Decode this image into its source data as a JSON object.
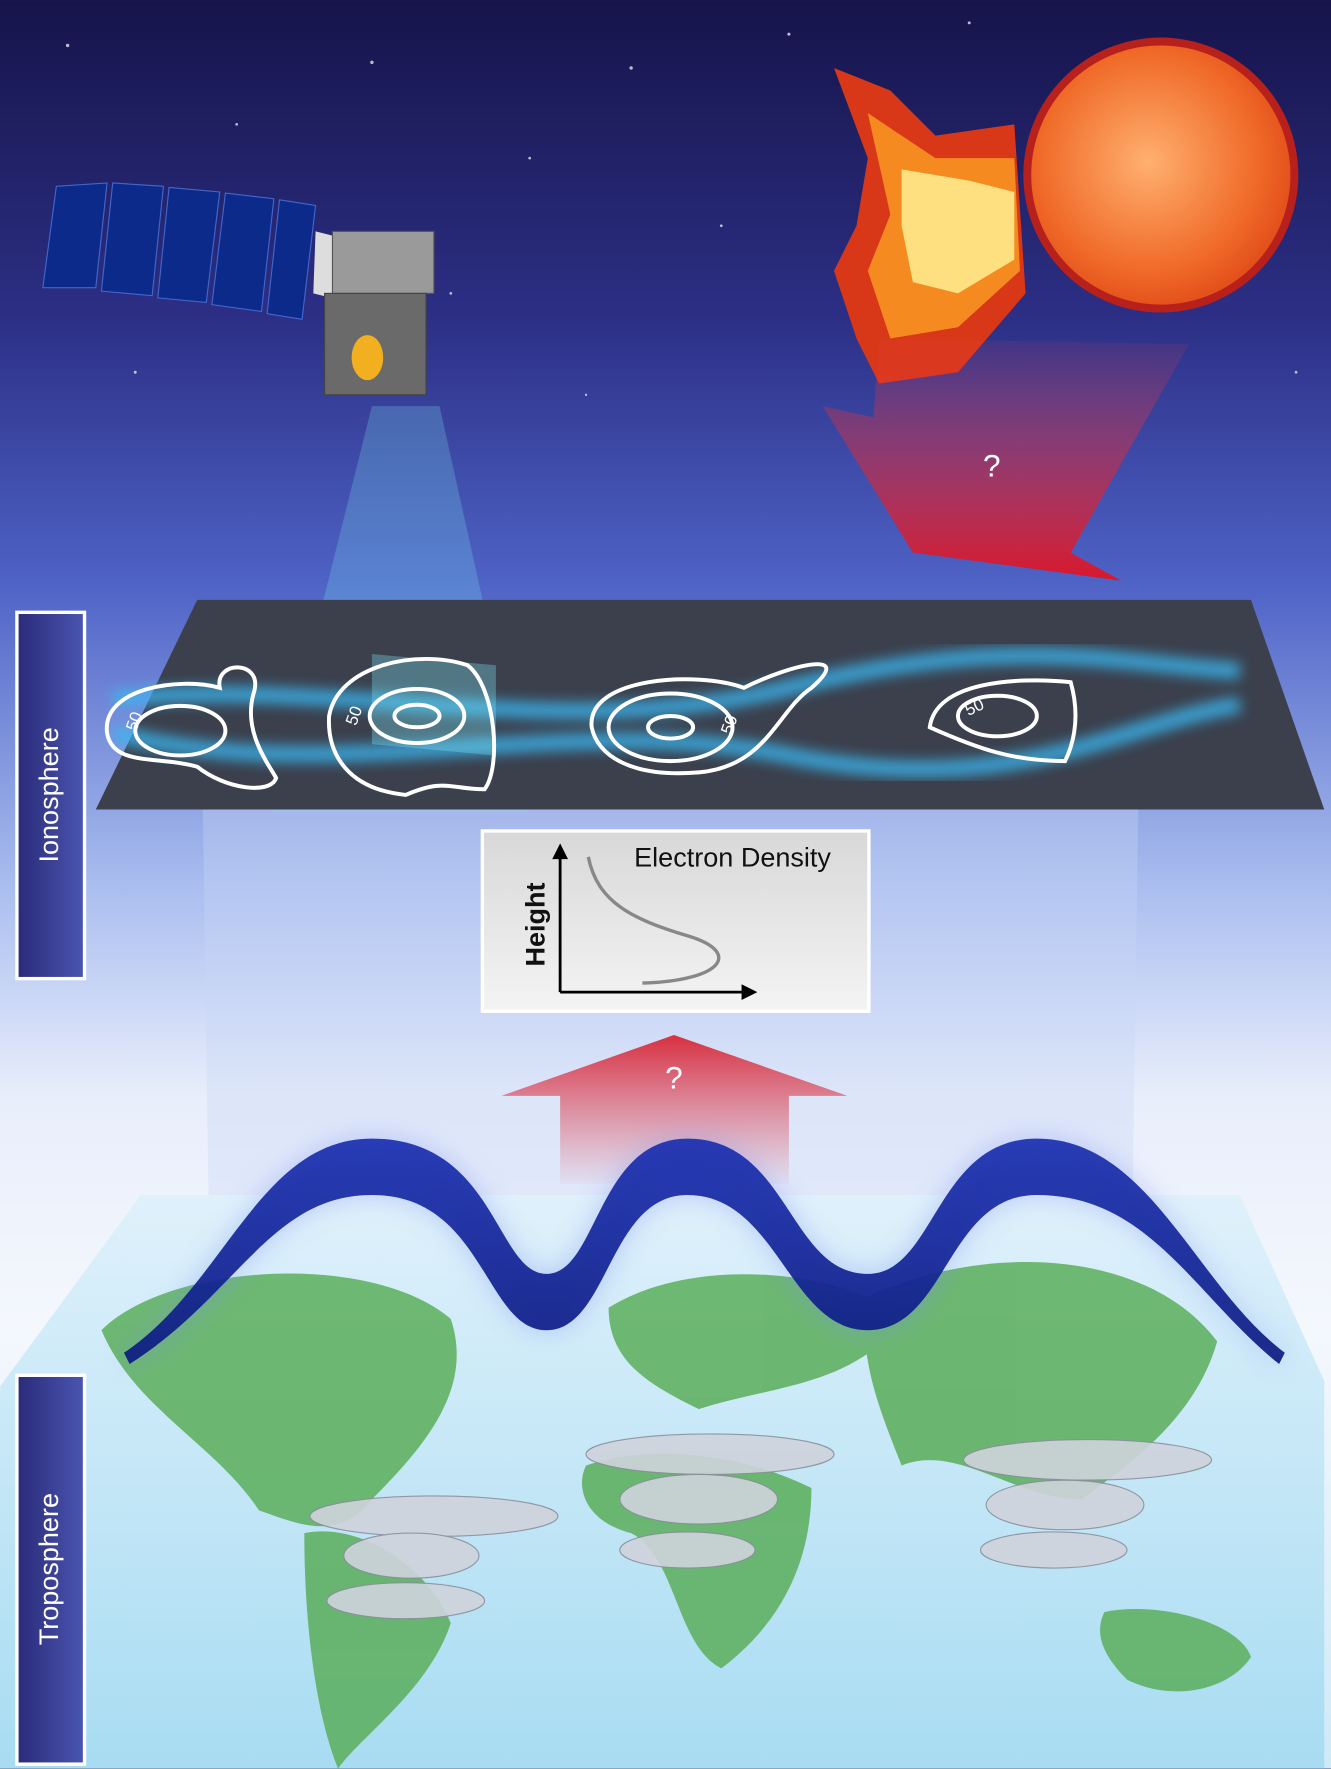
{
  "side_labels": {
    "ionosphere": "Ionosphere",
    "troposphere": "Troposphere"
  },
  "profile_box": {
    "title": "Electron Density",
    "y_axis": "Height"
  },
  "arrows": {
    "solar": "?",
    "lower_atmosphere": "?"
  },
  "contour_labels": [
    "50",
    "50",
    "50",
    "50"
  ]
}
